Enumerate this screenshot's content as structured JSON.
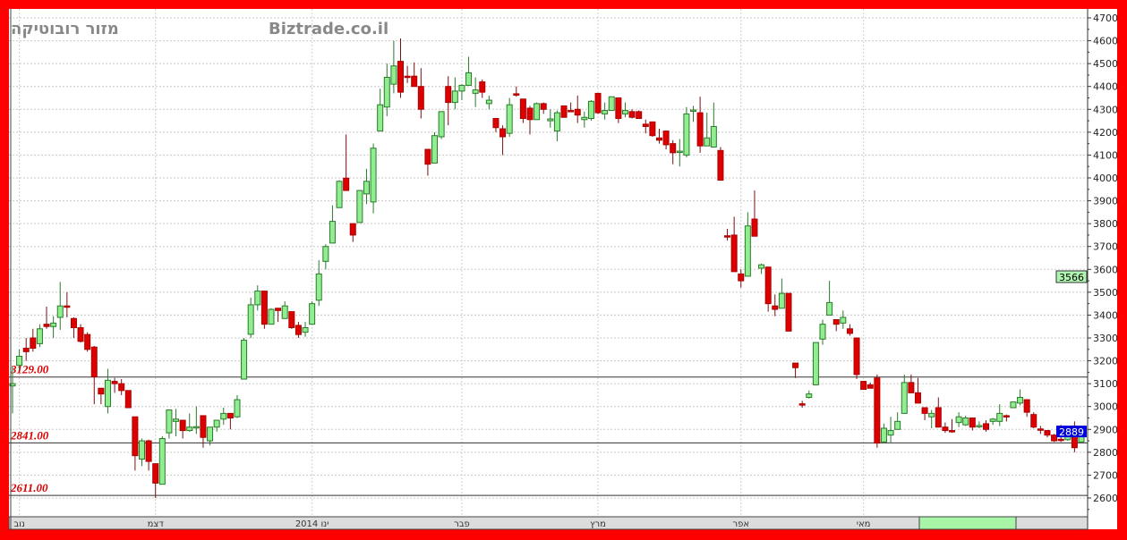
{
  "header": {
    "instrument": "מזור רובוטיקה",
    "site": "Biztrade.co.il"
  },
  "colors": {
    "border": "#ff0000",
    "up": "#90ee90",
    "down": "#dd0000",
    "level_label": "#dd0000",
    "last_price_box": "#0000dd",
    "marker_box": "#b0f5b0",
    "axis_highlight": "#a8f5a8"
  },
  "chart_data": {
    "type": "candlestick",
    "title": "",
    "ylim": [
      2600,
      4700
    ],
    "y_ticks": [
      2600,
      2700,
      2800,
      2900,
      3000,
      3100,
      3200,
      3300,
      3400,
      3500,
      3600,
      3700,
      3800,
      3900,
      4000,
      4100,
      4200,
      4300,
      4400,
      4500,
      4600,
      4700
    ],
    "grid": true,
    "x_month_labels": [
      {
        "label": "נוב",
        "at_candle": 1
      },
      {
        "label": "דצמ",
        "at_candle": 21
      },
      {
        "label": "ינו 2014",
        "at_candle": 44
      },
      {
        "label": "פבר",
        "at_candle": 66
      },
      {
        "label": "מרץ",
        "at_candle": 86
      },
      {
        "label": "אפר",
        "at_candle": 107
      },
      {
        "label": "מאי",
        "at_candle": 125
      }
    ],
    "levels": [
      {
        "value": 3129,
        "label": "3129.00"
      },
      {
        "value": 2841,
        "label": "2841.00"
      },
      {
        "value": 2611,
        "label": "2611.00"
      }
    ],
    "marker_price": {
      "value": 3566,
      "label": "3566"
    },
    "last_price": {
      "value": 2889,
      "label": "2889"
    },
    "ohlc_fields": [
      "open",
      "high",
      "low",
      "close"
    ],
    "candles": [
      [
        3090,
        3175,
        2970,
        3100
      ],
      [
        3180,
        3250,
        3160,
        3220
      ],
      [
        3255,
        3300,
        3200,
        3240
      ],
      [
        3300,
        3340,
        3240,
        3255
      ],
      [
        3275,
        3360,
        3260,
        3340
      ],
      [
        3360,
        3437,
        3340,
        3350
      ],
      [
        3350,
        3395,
        3300,
        3365
      ],
      [
        3390,
        3545,
        3335,
        3440
      ],
      [
        3440,
        3500,
        3390,
        3435
      ],
      [
        3385,
        3390,
        3300,
        3345
      ],
      [
        3345,
        3360,
        3280,
        3285
      ],
      [
        3315,
        3325,
        3240,
        3250
      ],
      [
        3260,
        3265,
        3010,
        3130
      ],
      [
        3080,
        3080,
        3010,
        3055
      ],
      [
        3000,
        3165,
        2970,
        3115
      ],
      [
        3110,
        3125,
        3060,
        3100
      ],
      [
        3100,
        3120,
        3050,
        3070
      ],
      [
        3070,
        3070,
        2995,
        2995
      ],
      [
        2955,
        2955,
        2720,
        2785
      ],
      [
        2770,
        2860,
        2740,
        2850
      ],
      [
        2850,
        2855,
        2720,
        2760
      ],
      [
        2750,
        2750,
        2600,
        2665
      ],
      [
        2660,
        2870,
        2660,
        2860
      ],
      [
        2885,
        2985,
        2860,
        2985
      ],
      [
        2935,
        2990,
        2870,
        2945
      ],
      [
        2940,
        2940,
        2860,
        2895
      ],
      [
        2895,
        2970,
        2890,
        2910
      ],
      [
        2910,
        3000,
        2880,
        2912
      ],
      [
        2960,
        2960,
        2820,
        2865
      ],
      [
        2850,
        2910,
        2830,
        2910
      ],
      [
        2910,
        2940,
        2890,
        2940
      ],
      [
        2945,
        2995,
        2920,
        2970
      ],
      [
        2970,
        2970,
        2900,
        2950
      ],
      [
        2955,
        3050,
        2950,
        3030
      ],
      [
        3120,
        3300,
        3120,
        3290
      ],
      [
        3316,
        3476,
        3300,
        3445
      ],
      [
        3445,
        3530,
        3420,
        3505
      ],
      [
        3505,
        3505,
        3340,
        3360
      ],
      [
        3360,
        3430,
        3360,
        3425
      ],
      [
        3430,
        3430,
        3370,
        3420
      ],
      [
        3385,
        3460,
        3385,
        3440
      ],
      [
        3415,
        3415,
        3340,
        3345
      ],
      [
        3355,
        3370,
        3300,
        3315
      ],
      [
        3325,
        3370,
        3305,
        3345
      ],
      [
        3360,
        3460,
        3360,
        3450
      ],
      [
        3465,
        3640,
        3440,
        3580
      ],
      [
        3635,
        3710,
        3600,
        3700
      ],
      [
        3715,
        3880,
        3715,
        3810
      ],
      [
        3870,
        3990,
        3870,
        3985
      ],
      [
        3999,
        4190,
        3945,
        3945
      ],
      [
        3800,
        3800,
        3720,
        3750
      ],
      [
        3805,
        3945,
        3805,
        3945
      ],
      [
        3930,
        4040,
        3885,
        3985
      ],
      [
        3895,
        4150,
        3845,
        4130
      ],
      [
        4205,
        4390,
        4205,
        4320
      ],
      [
        4310,
        4500,
        4270,
        4440
      ],
      [
        4410,
        4600,
        4370,
        4490
      ],
      [
        4510,
        4610,
        4350,
        4375
      ],
      [
        4445,
        4490,
        4415,
        4440
      ],
      [
        4445,
        4505,
        4400,
        4400
      ],
      [
        4400,
        4480,
        4260,
        4300
      ],
      [
        4125,
        4125,
        4010,
        4060
      ],
      [
        4065,
        4200,
        4065,
        4185
      ],
      [
        4180,
        4290,
        4170,
        4290
      ],
      [
        4400,
        4445,
        4230,
        4330
      ],
      [
        4330,
        4440,
        4300,
        4380
      ],
      [
        4380,
        4410,
        4340,
        4405
      ],
      [
        4405,
        4530,
        4405,
        4460
      ],
      [
        4370,
        4440,
        4310,
        4385
      ],
      [
        4420,
        4430,
        4350,
        4375
      ],
      [
        4325,
        4360,
        4300,
        4340
      ],
      [
        4260,
        4260,
        4200,
        4220
      ],
      [
        4215,
        4230,
        4100,
        4180
      ],
      [
        4195,
        4350,
        4180,
        4320
      ],
      [
        4368,
        4400,
        4355,
        4362
      ],
      [
        4345,
        4345,
        4240,
        4260
      ],
      [
        4305,
        4315,
        4190,
        4255
      ],
      [
        4255,
        4330,
        4255,
        4325
      ],
      [
        4325,
        4330,
        4280,
        4300
      ],
      [
        4250,
        4300,
        4220,
        4258
      ],
      [
        4205,
        4295,
        4160,
        4285
      ],
      [
        4315,
        4315,
        4265,
        4265
      ],
      [
        4295,
        4330,
        4290,
        4290
      ],
      [
        4300,
        4360,
        4240,
        4275
      ],
      [
        4255,
        4290,
        4220,
        4265
      ],
      [
        4260,
        4340,
        4250,
        4335
      ],
      [
        4370,
        4370,
        4280,
        4285
      ],
      [
        4280,
        4330,
        4255,
        4295
      ],
      [
        4295,
        4355,
        4295,
        4355
      ],
      [
        4350,
        4350,
        4240,
        4260
      ],
      [
        4280,
        4330,
        4265,
        4295
      ],
      [
        4290,
        4300,
        4260,
        4265
      ],
      [
        4290,
        4295,
        4260,
        4260
      ],
      [
        4235,
        4255,
        4195,
        4225
      ],
      [
        4245,
        4245,
        4180,
        4185
      ],
      [
        4175,
        4215,
        4150,
        4165
      ],
      [
        4205,
        4205,
        4125,
        4145
      ],
      [
        4150,
        4165,
        4060,
        4110
      ],
      [
        4113,
        4170,
        4050,
        4117
      ],
      [
        4100,
        4310,
        4090,
        4280
      ],
      [
        4293,
        4315,
        4245,
        4297
      ],
      [
        4285,
        4355,
        4110,
        4140
      ],
      [
        4140,
        4285,
        4140,
        4175
      ],
      [
        4135,
        4330,
        4135,
        4225
      ],
      [
        4120,
        4135,
        3990,
        3990
      ],
      [
        3747,
        3777,
        3726,
        3743
      ],
      [
        3750,
        3830,
        3590,
        3590
      ],
      [
        3580,
        3600,
        3520,
        3550
      ],
      [
        3570,
        3850,
        3570,
        3790
      ],
      [
        3820,
        3945,
        3745,
        3745
      ],
      [
        3605,
        3625,
        3580,
        3620
      ],
      [
        3610,
        3610,
        3415,
        3450
      ],
      [
        3440,
        3490,
        3395,
        3425
      ],
      [
        3430,
        3560,
        3430,
        3495
      ],
      [
        3495,
        3495,
        3330,
        3330
      ],
      [
        3190,
        3190,
        3125,
        3170
      ],
      [
        3012,
        3025,
        2995,
        3008
      ],
      [
        3040,
        3070,
        3035,
        3055
      ],
      [
        3095,
        3280,
        3095,
        3280
      ],
      [
        3295,
        3380,
        3270,
        3360
      ],
      [
        3400,
        3550,
        3400,
        3455
      ],
      [
        3380,
        3380,
        3330,
        3360
      ],
      [
        3365,
        3420,
        3340,
        3390
      ],
      [
        3340,
        3360,
        3310,
        3320
      ],
      [
        3300,
        3300,
        3120,
        3140
      ],
      [
        3110,
        3110,
        3075,
        3075
      ],
      [
        3095,
        3105,
        3080,
        3080
      ],
      [
        3125,
        3140,
        2820,
        2840
      ],
      [
        2845,
        2925,
        2840,
        2905
      ],
      [
        2875,
        2955,
        2840,
        2895
      ],
      [
        2900,
        2975,
        2900,
        2935
      ],
      [
        2970,
        3140,
        2970,
        3105
      ],
      [
        3105,
        3140,
        3060,
        3060
      ],
      [
        3060,
        3125,
        3015,
        3015
      ],
      [
        2995,
        2995,
        2940,
        2970
      ],
      [
        2955,
        2985,
        2905,
        2970
      ],
      [
        2995,
        3040,
        2910,
        2910
      ],
      [
        2910,
        2930,
        2885,
        2895
      ],
      [
        2895,
        2945,
        2885,
        2890
      ],
      [
        2930,
        2975,
        2910,
        2955
      ],
      [
        2920,
        2960,
        2915,
        2950
      ],
      [
        2950,
        2950,
        2895,
        2910
      ],
      [
        2913,
        2935,
        2905,
        2917
      ],
      [
        2925,
        2940,
        2890,
        2900
      ],
      [
        2935,
        2950,
        2920,
        2945
      ],
      [
        2935,
        3010,
        2915,
        2970
      ],
      [
        2960,
        2965,
        2935,
        2955
      ],
      [
        2995,
        3020,
        2995,
        3020
      ],
      [
        3015,
        3075,
        3005,
        3040
      ],
      [
        3030,
        3030,
        2955,
        2975
      ],
      [
        2965,
        2975,
        2905,
        2910
      ],
      [
        2902,
        2915,
        2880,
        2898
      ],
      [
        2895,
        2895,
        2865,
        2875
      ],
      [
        2875,
        2880,
        2845,
        2850
      ],
      [
        2857,
        2920,
        2845,
        2853
      ],
      [
        2855,
        2915,
        2850,
        2905
      ],
      [
        2915,
        2935,
        2800,
        2820
      ],
      [
        2845,
        2900,
        2845,
        2889
      ]
    ]
  }
}
